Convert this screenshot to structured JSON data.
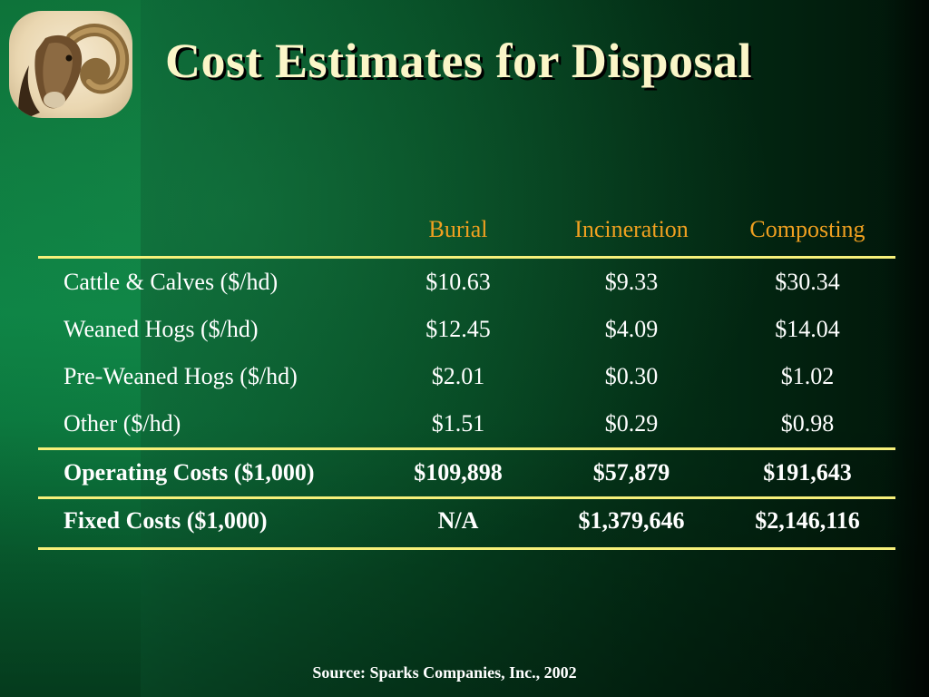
{
  "slide": {
    "title": "Cost Estimates for Disposal",
    "source": "Source: Sparks Companies, Inc., 2002"
  },
  "table": {
    "headers": [
      "Burial",
      "Incineration",
      "Composting"
    ],
    "header_color": "#f0a020",
    "rule_color": "#f6f07a",
    "rows": [
      {
        "label": "Cattle & Calves ($/hd)",
        "values": [
          "$10.63",
          "$9.33",
          "$30.34"
        ],
        "bold": false
      },
      {
        "label": "Weaned Hogs ($/hd)",
        "values": [
          "$12.45",
          "$4.09",
          "$14.04"
        ],
        "bold": false
      },
      {
        "label": "Pre-Weaned Hogs ($/hd)",
        "values": [
          "$2.01",
          "$0.30",
          "$1.02"
        ],
        "bold": false
      },
      {
        "label": "Other ($/hd)",
        "values": [
          "$1.51",
          "$0.29",
          "$0.98"
        ],
        "bold": false
      },
      {
        "label": "Operating Costs ($1,000)",
        "values": [
          "$109,898",
          "$57,879",
          "$191,643"
        ],
        "bold": true
      },
      {
        "label": "Fixed Costs ($1,000)",
        "values": [
          "N/A",
          "$1,379,646",
          "$2,146,116"
        ],
        "bold": true
      }
    ]
  },
  "logo": {
    "icon": "bighorn-ram-icon"
  }
}
